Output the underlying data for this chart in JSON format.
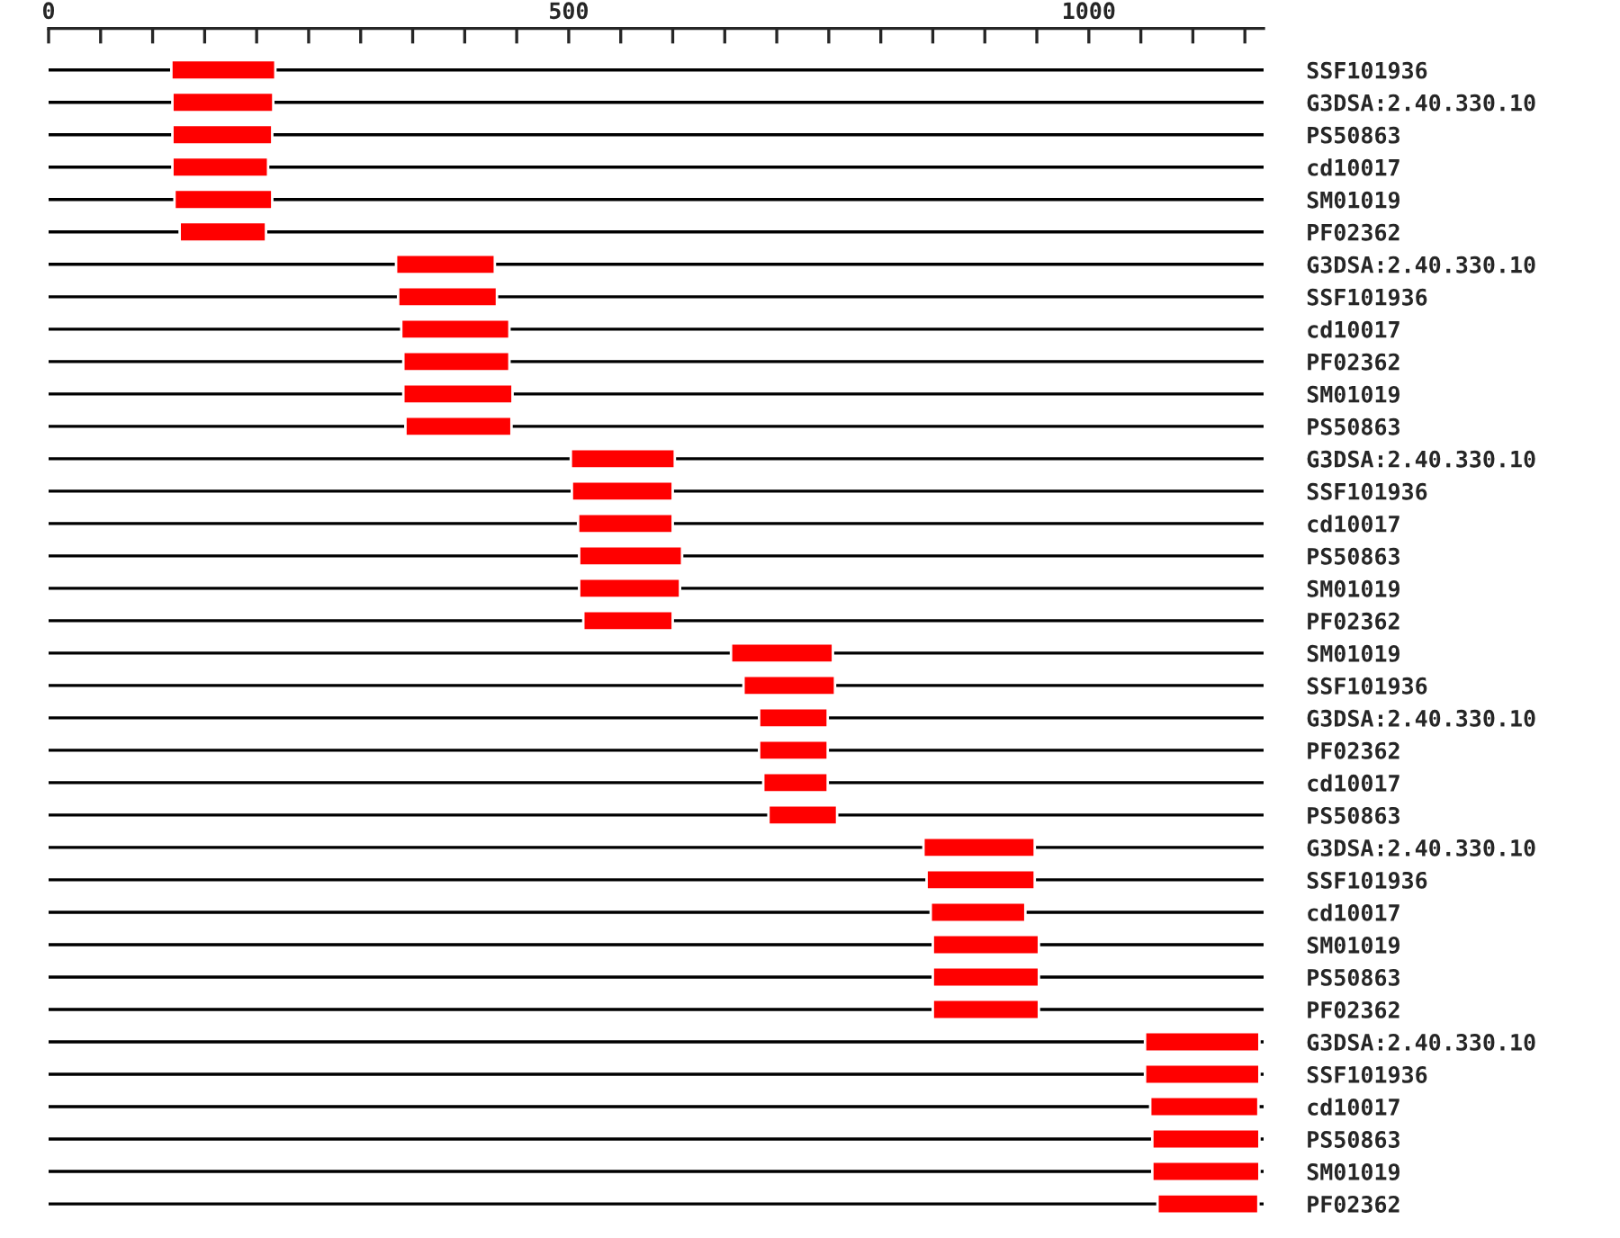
{
  "chart_data": {
    "type": "bar",
    "orientation": "horizontal",
    "categories": [
      "SSF101936",
      "G3DSA:2.40.330.10",
      "PS50863",
      "cd10017",
      "SM01019",
      "PF02362",
      "G3DSA:2.40.330.10",
      "SSF101936",
      "cd10017",
      "PF02362",
      "SM01019",
      "PS50863",
      "G3DSA:2.40.330.10",
      "SSF101936",
      "cd10017",
      "PS50863",
      "SM01019",
      "PF02362",
      "SM01019",
      "SSF101936",
      "G3DSA:2.40.330.10",
      "PF02362",
      "cd10017",
      "PS50863",
      "G3DSA:2.40.330.10",
      "SSF101936",
      "cd10017",
      "SM01019",
      "PS50863",
      "PF02362",
      "G3DSA:2.40.330.10",
      "SSF101936",
      "cd10017",
      "PS50863",
      "SM01019",
      "PF02362"
    ],
    "base": [
      118,
      119,
      119,
      119,
      121,
      126,
      334,
      336,
      339,
      341,
      341,
      343,
      502,
      503,
      509,
      510,
      510,
      514,
      656,
      668,
      683,
      683,
      687,
      692,
      841,
      844,
      848,
      850,
      850,
      850,
      1054,
      1054,
      1059,
      1061,
      1061,
      1066
    ],
    "values": [
      100,
      97,
      96,
      92,
      94,
      83,
      95,
      95,
      104,
      102,
      105,
      102,
      100,
      97,
      91,
      99,
      97,
      86,
      98,
      88,
      66,
      66,
      62,
      66,
      107,
      104,
      91,
      102,
      102,
      102,
      110,
      110,
      104,
      103,
      103,
      97
    ],
    "color": "#ff0000",
    "xlim": [
      0,
      1168
    ],
    "xticks": [
      0,
      {
        "value": 50,
        "label": null
      },
      {
        "value": 100,
        "label": null
      },
      {
        "value": 150,
        "label": null
      },
      {
        "value": 200,
        "label": null
      },
      {
        "value": 250,
        "label": null
      },
      {
        "value": 300,
        "label": null
      },
      {
        "value": 350,
        "label": null
      },
      {
        "value": 400,
        "label": null
      },
      {
        "value": 450,
        "label": null
      },
      500,
      {
        "value": 550,
        "label": null
      },
      {
        "value": 600,
        "label": null
      },
      {
        "value": 650,
        "label": null
      },
      {
        "value": 700,
        "label": null
      },
      {
        "value": 750,
        "label": null
      },
      {
        "value": 800,
        "label": null
      },
      {
        "value": 850,
        "label": null
      },
      {
        "value": 900,
        "label": null
      },
      {
        "value": 950,
        "label": null
      },
      1000,
      {
        "value": 1050,
        "label": null
      },
      {
        "value": 1100,
        "label": null
      },
      {
        "value": 1150,
        "label": null
      }
    ],
    "grid": "y"
  }
}
